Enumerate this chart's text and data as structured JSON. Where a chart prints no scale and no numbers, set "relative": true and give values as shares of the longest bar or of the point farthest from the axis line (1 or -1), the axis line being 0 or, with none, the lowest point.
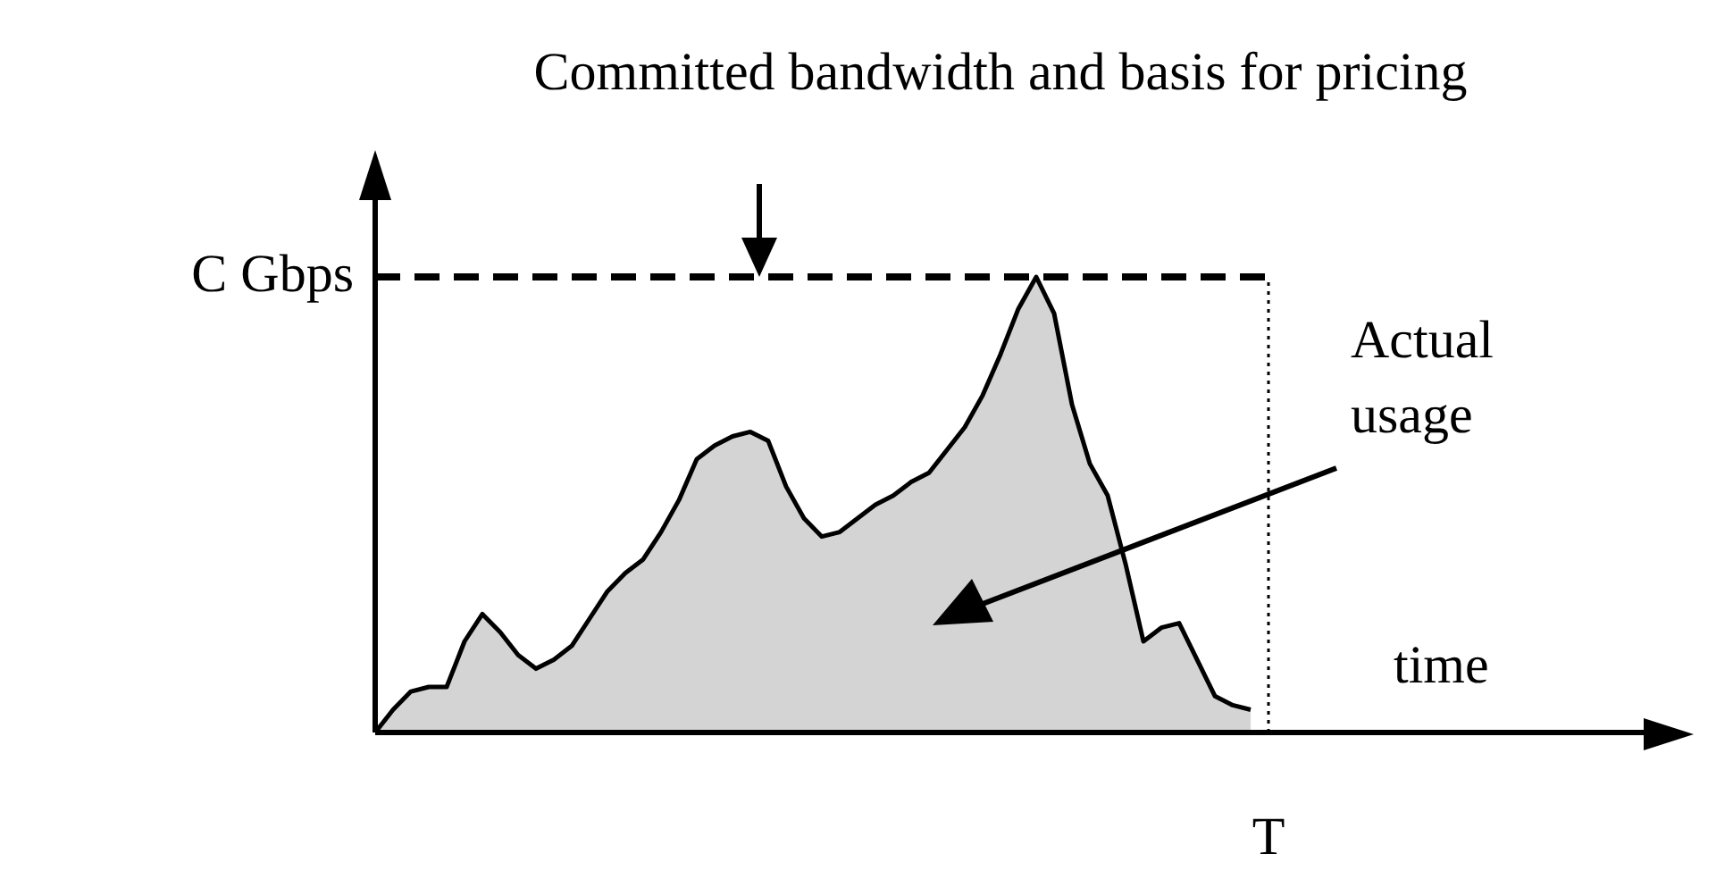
{
  "chart_data": {
    "type": "area",
    "relative": true,
    "title": "Committed bandwidth and basis for pricing",
    "xlabel": "time",
    "annotations": [
      "Actual usage",
      "T"
    ],
    "categories": [
      null,
      null,
      null,
      null,
      null,
      null,
      null,
      null,
      null,
      null,
      null,
      null,
      null,
      null,
      null,
      null,
      null,
      null,
      null,
      null,
      null,
      null,
      null,
      null,
      null,
      null,
      null,
      null,
      null,
      null,
      null,
      null,
      null,
      null,
      null,
      null,
      null,
      null,
      null,
      null,
      null,
      null,
      null,
      null,
      null,
      null,
      null,
      null,
      null,
      null,
      null,
      null,
      null,
      null,
      null,
      null,
      null,
      null,
      null,
      null,
      null,
      null,
      null,
      null,
      null,
      null,
      null,
      null,
      null,
      null,
      null,
      null,
      null,
      null
    ],
    "series": [
      {
        "color": "#d4d4d4",
        "values": [
          0,
          0.05,
          0.09,
          0.1,
          0.1,
          0.2,
          0.26,
          0.22,
          0.17,
          0.14,
          0.16,
          0.19,
          0.25,
          0.31,
          0.35,
          0.38,
          0.44,
          0.51,
          0.6,
          0.63,
          0.65,
          0.66,
          0.64,
          0.54,
          0.47,
          0.43,
          0.44,
          0.47,
          0.5,
          0.52,
          0.55,
          0.57,
          0.62,
          0.67,
          0.74,
          0.83,
          0.93,
          1,
          0.92,
          0.72,
          0.59,
          0.52,
          0.37,
          0.2,
          0.23,
          0.24,
          0.16,
          0.08,
          0.06,
          0.05,
          null,
          null,
          null,
          null,
          null,
          null,
          null,
          null,
          null,
          null,
          null,
          null,
          null,
          null,
          null,
          null,
          null,
          null,
          null,
          null,
          null,
          null,
          null,
          null
        ]
      }
    ],
    "ref_lines": [
      {
        "axis": "y",
        "value": 1,
        "label": "C Gbps",
        "line_style": "dashed",
        "color": "#000000"
      }
    ],
    "legend": false
  }
}
